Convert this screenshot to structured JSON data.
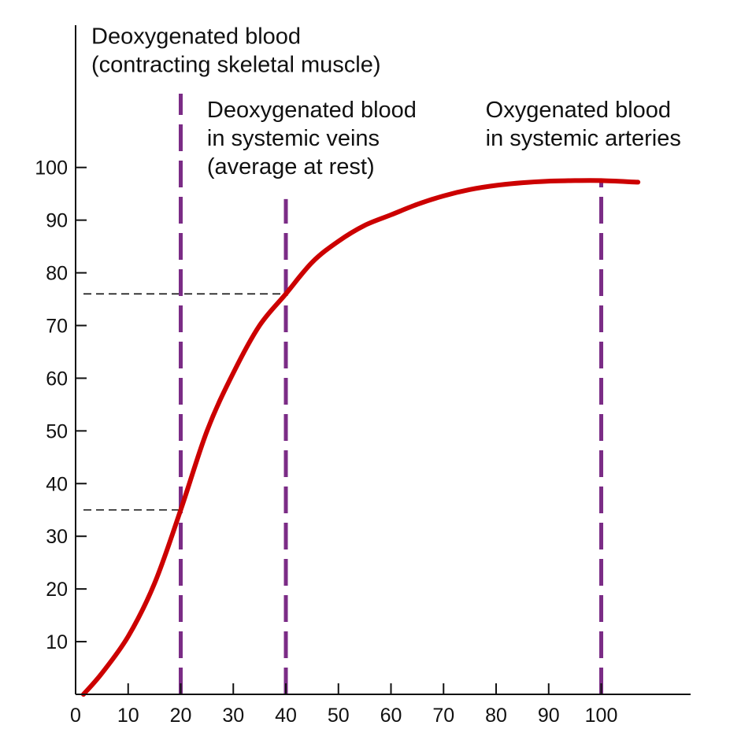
{
  "chart_data": {
    "type": "line",
    "title": "",
    "xlabel": "",
    "ylabel": "",
    "xlim": [
      0,
      117
    ],
    "ylim": [
      0,
      127
    ],
    "x_ticks": [
      "0",
      "10",
      "20",
      "30",
      "40",
      "50",
      "60",
      "70",
      "80",
      "90",
      "100"
    ],
    "y_ticks": [
      "10",
      "20",
      "30",
      "40",
      "50",
      "60",
      "70",
      "80",
      "90",
      "100"
    ],
    "grid": false,
    "legend": "none",
    "series": [
      {
        "x": [
          1.5,
          5,
          10,
          15,
          20,
          25,
          30,
          35,
          40,
          45,
          50,
          55,
          60,
          65,
          70,
          75,
          80,
          85,
          90,
          95,
          100,
          107
        ],
        "y": [
          0,
          4,
          11,
          21,
          35,
          50,
          61,
          70,
          76,
          82,
          86,
          89,
          91,
          93,
          94.6,
          95.8,
          96.6,
          97.1,
          97.4,
          97.5,
          97.5,
          97.2
        ],
        "color": "#cc0000"
      }
    ],
    "reference_lines": [
      {
        "x": 20,
        "y_from": 0,
        "y_to": 114,
        "color": "#7b2c86"
      },
      {
        "x": 40,
        "y_from": 0,
        "y_to": 94,
        "color": "#7b2c86"
      },
      {
        "x": 100,
        "y_from": 0,
        "y_to": 97.5,
        "color": "#7b2c86"
      }
    ],
    "guide_lines": [
      {
        "y": 35,
        "x_from": 1.5,
        "x_to": 20
      },
      {
        "y": 76,
        "x_from": 1.5,
        "x_to": 40
      }
    ],
    "annotations": [
      {
        "lines": [
          "Deoxygenated blood",
          "(contracting skeletal muscle)"
        ],
        "anchor_x": 3,
        "anchor_y": 123.5
      },
      {
        "lines": [
          "Deoxygenated blood",
          "in systemic veins",
          "(average at rest)"
        ],
        "anchor_x": 25,
        "anchor_y": 109.5
      },
      {
        "lines": [
          "Oxygenated blood",
          "in systemic arteries"
        ],
        "anchor_x": 78,
        "anchor_y": 109.5
      }
    ]
  }
}
